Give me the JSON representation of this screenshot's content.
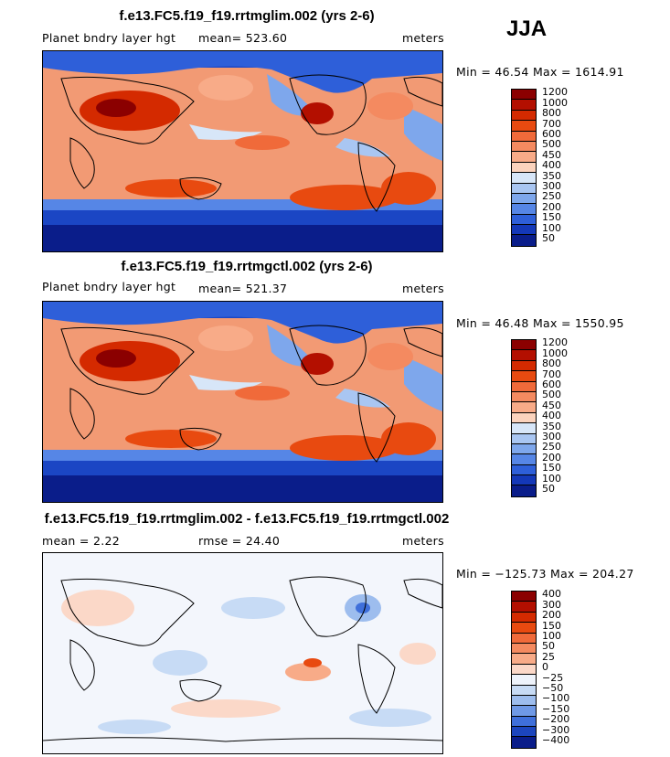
{
  "season": "JJA",
  "panels": [
    {
      "title": "f.e13.FC5.f19_f19.rrtmglim.002 (yrs 2-6)",
      "left_label": "Planet bndry layer hgt",
      "center_label": "mean= 523.60",
      "right_label": "meters",
      "minmax": "Min =  46.54 Max = 1614.91",
      "levels": [
        "1200",
        "1000",
        "800",
        "700",
        "600",
        "500",
        "450",
        "400",
        "350",
        "300",
        "250",
        "200",
        "150",
        "100",
        "50"
      ],
      "colors": [
        "#8b0000",
        "#b30f00",
        "#d42a00",
        "#e84a10",
        "#f06a3a",
        "#f48a60",
        "#f8ab88",
        "#fbd3bd",
        "#d7e6f8",
        "#a9c6f2",
        "#7ea7ec",
        "#5686e6",
        "#2e5fd9",
        "#1438b8",
        "#0a1d8a"
      ]
    },
    {
      "title": "f.e13.FC5.f19_f19.rrtmgctl.002 (yrs 2-6)",
      "left_label": "Planet bndry layer hgt",
      "center_label": "mean= 521.37",
      "right_label": "meters",
      "minmax": "Min =  46.48 Max = 1550.95",
      "levels": [
        "1200",
        "1000",
        "800",
        "700",
        "600",
        "500",
        "450",
        "400",
        "350",
        "300",
        "250",
        "200",
        "150",
        "100",
        "50"
      ],
      "colors": [
        "#8b0000",
        "#b30f00",
        "#d42a00",
        "#e84a10",
        "#f06a3a",
        "#f48a60",
        "#f8ab88",
        "#fbd3bd",
        "#d7e6f8",
        "#a9c6f2",
        "#7ea7ec",
        "#5686e6",
        "#2e5fd9",
        "#1438b8",
        "#0a1d8a"
      ]
    },
    {
      "title": "f.e13.FC5.f19_f19.rrtmglim.002 - f.e13.FC5.f19_f19.rrtmgctl.002",
      "left_label": "mean =    2.22",
      "center_label": "rmse =   24.40",
      "right_label": "meters",
      "minmax": "Min = −125.73 Max = 204.27",
      "levels": [
        "400",
        "300",
        "200",
        "150",
        "100",
        "50",
        "25",
        "0",
        "−25",
        "−50",
        "−100",
        "−150",
        "−200",
        "−300",
        "−400"
      ],
      "colors": [
        "#8b0000",
        "#b30f00",
        "#d42a00",
        "#e84a10",
        "#f06a3a",
        "#f48a60",
        "#f8ab88",
        "#fbd8c8",
        "#eef3fb",
        "#c7dbf5",
        "#9dbdee",
        "#6f99e6",
        "#3f6fda",
        "#1c45bd",
        "#0a1d8a"
      ]
    }
  ]
}
